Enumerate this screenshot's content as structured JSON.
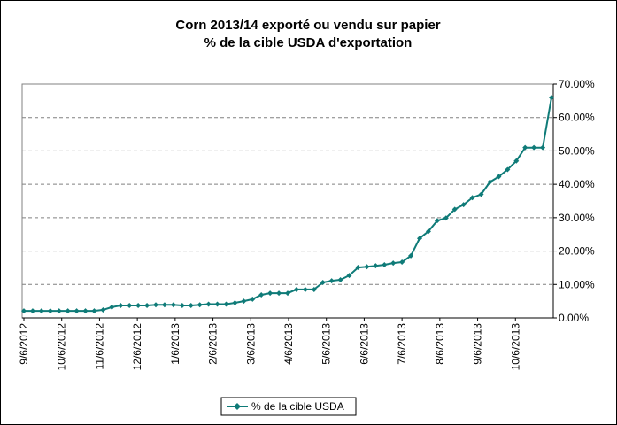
{
  "chart_data": {
    "type": "line",
    "title_line1": "Corn 2013/14 exporté ou vendu sur papier",
    "title_line2": "% de la cible USDA d'exportation",
    "xlabel": "",
    "ylabel": "",
    "ylim": [
      0,
      70
    ],
    "y_ticks": [
      "0.00%",
      "10.00%",
      "20.00%",
      "30.00%",
      "40.00%",
      "50.00%",
      "60.00%",
      "70.00%"
    ],
    "y_tick_values": [
      0,
      10,
      20,
      30,
      40,
      50,
      60,
      70
    ],
    "x_tick_labels": [
      "9/6/2012",
      "10/6/2012",
      "11/6/2012",
      "12/6/2012",
      "1/6/2013",
      "2/6/2013",
      "3/6/2013",
      "4/6/2013",
      "5/6/2013",
      "6/6/2013",
      "7/6/2013",
      "8/6/2013",
      "9/6/2013",
      "10/6/2013"
    ],
    "grid": "horizontal dashed",
    "legend_position": "bottom",
    "series": [
      {
        "name": "% de la cible USDA",
        "color": "#0f7b78",
        "values": [
          2.1,
          2.1,
          2.1,
          2.1,
          2.1,
          2.1,
          2.1,
          2.1,
          2.1,
          2.4,
          3.2,
          3.7,
          3.7,
          3.7,
          3.7,
          3.9,
          3.9,
          3.9,
          3.7,
          3.7,
          3.9,
          4.1,
          4.1,
          4.1,
          4.5,
          5.0,
          5.6,
          6.9,
          7.4,
          7.4,
          7.4,
          8.5,
          8.5,
          8.5,
          10.6,
          11.1,
          11.4,
          12.7,
          15.1,
          15.3,
          15.6,
          15.9,
          16.4,
          16.7,
          18.6,
          23.8,
          25.9,
          29.1,
          29.9,
          32.5,
          33.9,
          36.0,
          37.0,
          40.7,
          42.3,
          44.4,
          47.0,
          51.0,
          51.0,
          51.0,
          66.0
        ]
      }
    ]
  }
}
